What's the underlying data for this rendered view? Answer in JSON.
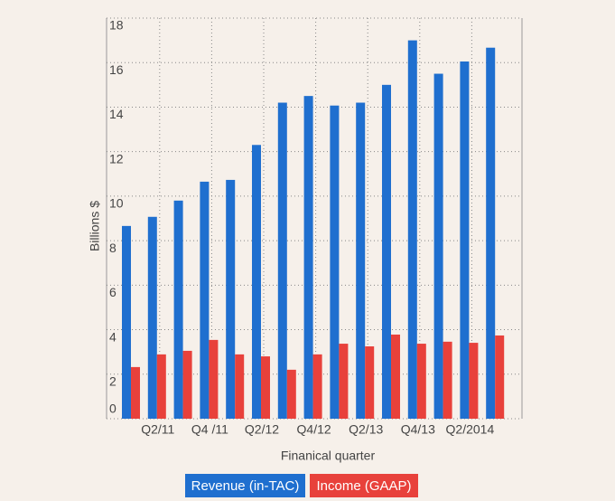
{
  "chart_data": {
    "type": "bar",
    "y_label": "Billions $",
    "x_label": "Finanical quarter",
    "categories": [
      null,
      "Q2/11",
      null,
      "Q4 /11",
      null,
      "Q2/12",
      null,
      "Q4/12",
      null,
      "Q2/13",
      null,
      "Q4/13",
      null,
      "Q2/2014",
      null
    ],
    "series": [
      {
        "name": "Revenue (in-TAC)",
        "color": "#1f6fcf",
        "values": [
          8.66,
          9.07,
          9.8,
          10.65,
          10.73,
          12.3,
          14.2,
          14.5,
          14.07,
          14.2,
          15.0,
          17.0,
          15.5,
          16.05,
          16.67
        ]
      },
      {
        "name": "Income (GAAP)",
        "color": "#e8413b",
        "values": [
          2.32,
          2.89,
          3.05,
          3.54,
          2.89,
          2.8,
          2.2,
          2.89,
          3.37,
          3.25,
          3.78,
          3.37,
          3.46,
          3.41,
          3.74
        ]
      }
    ],
    "ylim": [
      0,
      18
    ],
    "yticks": [
      0,
      2,
      4,
      6,
      8,
      10,
      12,
      14,
      16,
      18
    ],
    "grid": true
  }
}
